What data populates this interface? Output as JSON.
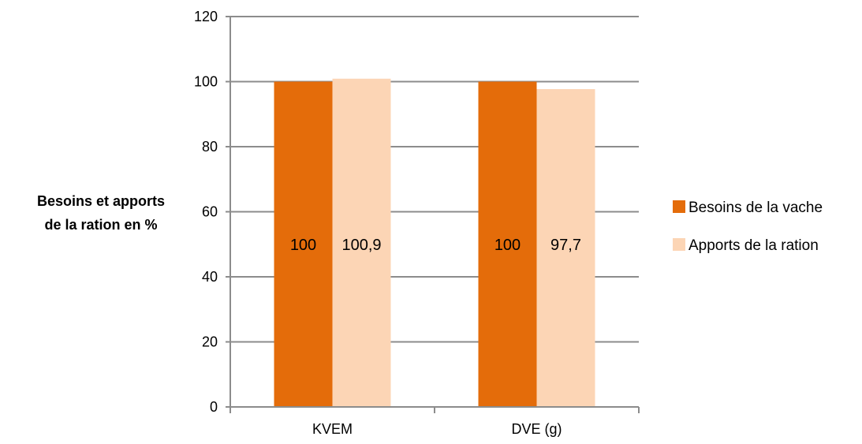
{
  "chart_data": {
    "type": "bar",
    "title": "",
    "ylabel_lines": [
      "Besoins et apports",
      "de la ration en %"
    ],
    "categories": [
      "KVEM",
      "DVE (g)"
    ],
    "series": [
      {
        "name": "Besoins de la vache",
        "values": [
          100,
          100
        ],
        "labels": [
          "100",
          "100"
        ],
        "color": "#E46C0A"
      },
      {
        "name": "Apports de la ration",
        "values": [
          100.9,
          97.7
        ],
        "labels": [
          "100,9",
          "97,7"
        ],
        "color": "#FCD5B5"
      }
    ],
    "ylim": [
      0,
      120
    ],
    "yticks": [
      0,
      20,
      40,
      60,
      80,
      100,
      120
    ],
    "grid": true,
    "legend_position": "right"
  }
}
